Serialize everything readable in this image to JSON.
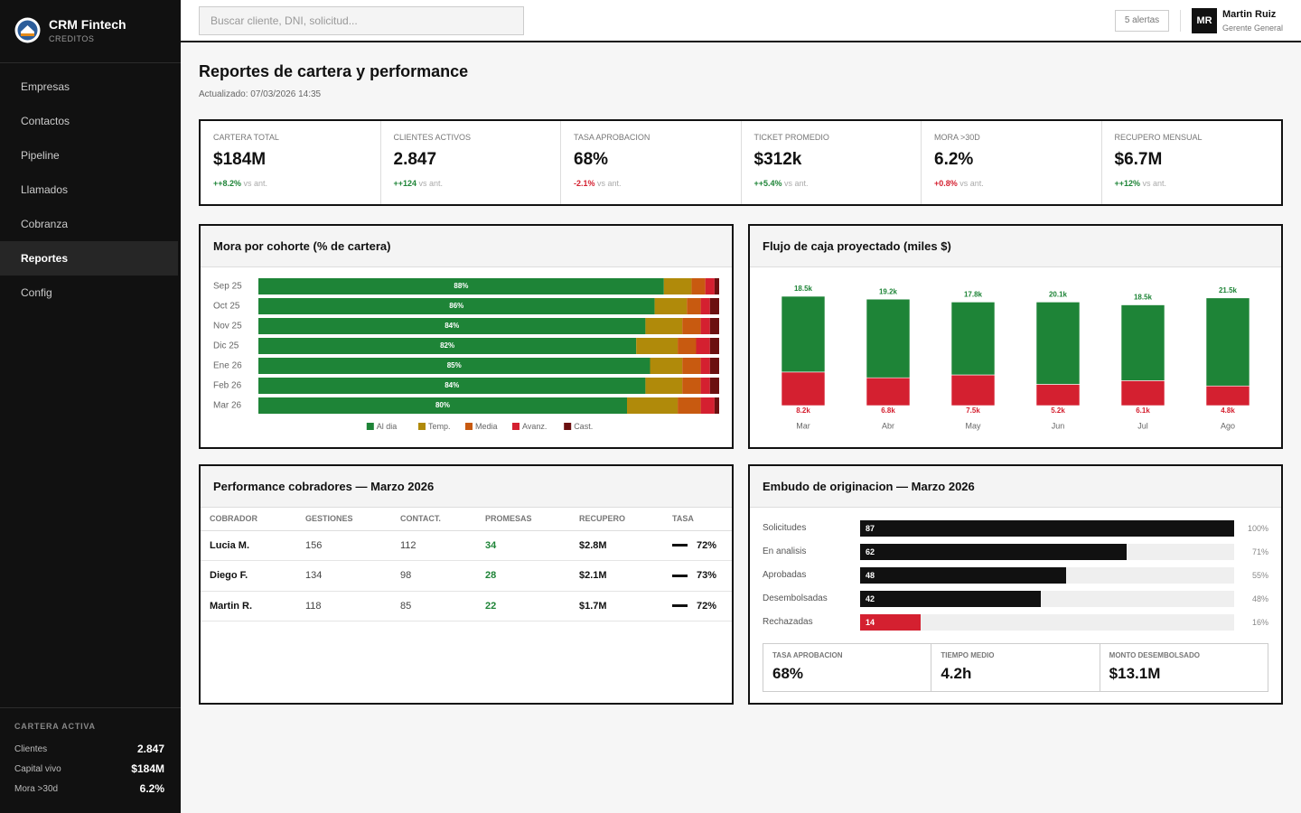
{
  "sidebar": {
    "brand": "CRM Fintech",
    "subtitle": "CREDITOS",
    "nav": [
      "Empresas",
      "Contactos",
      "Pipeline",
      "Llamados",
      "Cobranza",
      "Reportes",
      "Config"
    ],
    "active": 5,
    "summary_title": "CARTERA ACTIVA",
    "summary": [
      [
        "Clientes",
        "2.847"
      ],
      [
        "Capital vivo",
        "$184M"
      ],
      [
        "Mora >30d",
        "6.2%"
      ]
    ]
  },
  "header": {
    "search": "Buscar cliente, DNI, solicitud...",
    "alerts": "5 alertas",
    "initials": "MR",
    "user": "Martin Ruiz",
    "role": "Gerente General"
  },
  "page": {
    "title": "Reportes de cartera y performance",
    "updated": "Actualizado: 07/03/2026 14:35"
  },
  "kpis": [
    {
      "label": "CARTERA TOTAL",
      "value": "$184M",
      "change": "++8.2%",
      "note": "vs ant.",
      "change_color": "#1e8437"
    },
    {
      "label": "CLIENTES ACTIVOS",
      "value": "2.847",
      "change": "++124",
      "note": "vs ant.",
      "change_color": "#1e8437"
    },
    {
      "label": "TASA APROBACION",
      "value": "68%",
      "change": "-2.1%",
      "note": "vs ant.",
      "change_color": "#d42030"
    },
    {
      "label": "TICKET PROMEDIO",
      "value": "$312k",
      "change": "++5.4%",
      "note": "vs ant.",
      "change_color": "#1e8437"
    },
    {
      "label": "MORA >30D",
      "value": "6.2%",
      "change": "+0.8%",
      "note": "vs ant.",
      "change_color": "#d42030"
    },
    {
      "label": "RECUPERO MENSUAL",
      "value": "$6.7M",
      "change": "++12%",
      "note": "vs ant.",
      "change_color": "#1e8437"
    }
  ],
  "chart_data": [
    {
      "type": "bar",
      "orientation": "horizontal",
      "stacked": true,
      "title": "Mora por cohorte (% de cartera)",
      "categories": [
        "Sep 25",
        "Oct 25",
        "Nov 25",
        "Dic 25",
        "Ene 26",
        "Feb 26",
        "Mar 26"
      ],
      "xlim": [
        0,
        100
      ],
      "series": [
        {
          "name": "Al dia",
          "color": "#1e8437",
          "values": [
            88,
            86,
            84,
            82,
            85,
            84,
            80
          ],
          "value_labels": [
            "88%",
            "86%",
            "84%",
            "82%",
            "85%",
            "84%",
            "80%"
          ]
        },
        {
          "name": "Temp.",
          "color": "#b08a0a",
          "values": [
            6,
            7,
            8,
            9,
            7,
            8,
            11
          ]
        },
        {
          "name": "Media",
          "color": "#c85a10",
          "values": [
            3,
            3,
            4,
            4,
            4,
            4,
            5
          ]
        },
        {
          "name": "Avanz.",
          "color": "#d42030",
          "values": [
            2,
            2,
            2,
            3,
            2,
            2,
            3
          ]
        },
        {
          "name": "Cast.",
          "color": "#6b1010",
          "values": [
            1,
            2,
            2,
            2,
            2,
            2,
            1
          ]
        }
      ]
    },
    {
      "type": "bar",
      "orientation": "vertical",
      "stacked": true,
      "title": "Flujo de caja proyectado (miles $)",
      "categories": [
        "Mar",
        "Abr",
        "May",
        "Jun",
        "Jul",
        "Ago"
      ],
      "series": [
        {
          "color": "#d42030",
          "values": [
            8.2,
            6.8,
            7.5,
            5.2,
            6.1,
            4.8
          ],
          "value_labels": [
            "8.2k",
            "6.8k",
            "7.5k",
            "5.2k",
            "6.1k",
            "4.8k"
          ]
        },
        {
          "color": "#1e8437",
          "values": [
            18.5,
            19.2,
            17.8,
            20.1,
            18.5,
            21.5
          ],
          "value_labels": [
            "18.5k",
            "19.2k",
            "17.8k",
            "20.1k",
            "18.5k",
            "21.5k"
          ]
        }
      ]
    },
    {
      "type": "funnel",
      "title": "Embudo de originacion — Marzo 2026",
      "categories": [
        "Solicitudes",
        "En analisis",
        "Aprobadas",
        "Desembolsadas",
        "Rechazadas"
      ],
      "values": [
        87,
        62,
        48,
        42,
        14
      ],
      "colors": [
        "#111111",
        "#111111",
        "#111111",
        "#111111",
        "#d42030"
      ],
      "share_labels": [
        "100%",
        "71%",
        "55%",
        "48%",
        "16%"
      ],
      "stats": [
        {
          "label": "TASA APROBACION",
          "value": "68%"
        },
        {
          "label": "TIEMPO MEDIO",
          "value": "4.2h"
        },
        {
          "label": "MONTO DESEMBOLSADO",
          "value": "$13.1M"
        }
      ]
    }
  ],
  "table": {
    "title": "Performance cobradores — Marzo 2026",
    "columns": [
      "COBRADOR",
      "GESTIONES",
      "CONTACT.",
      "PROMESAS",
      "RECUPERO",
      "TASA"
    ],
    "rows": [
      [
        "Lucia M.",
        "156",
        "112",
        "34",
        "$2.8M",
        "72%"
      ],
      [
        "Diego F.",
        "134",
        "98",
        "28",
        "$2.1M",
        "73%"
      ],
      [
        "Martin R.",
        "118",
        "85",
        "22",
        "$1.7M",
        "72%"
      ]
    ]
  }
}
